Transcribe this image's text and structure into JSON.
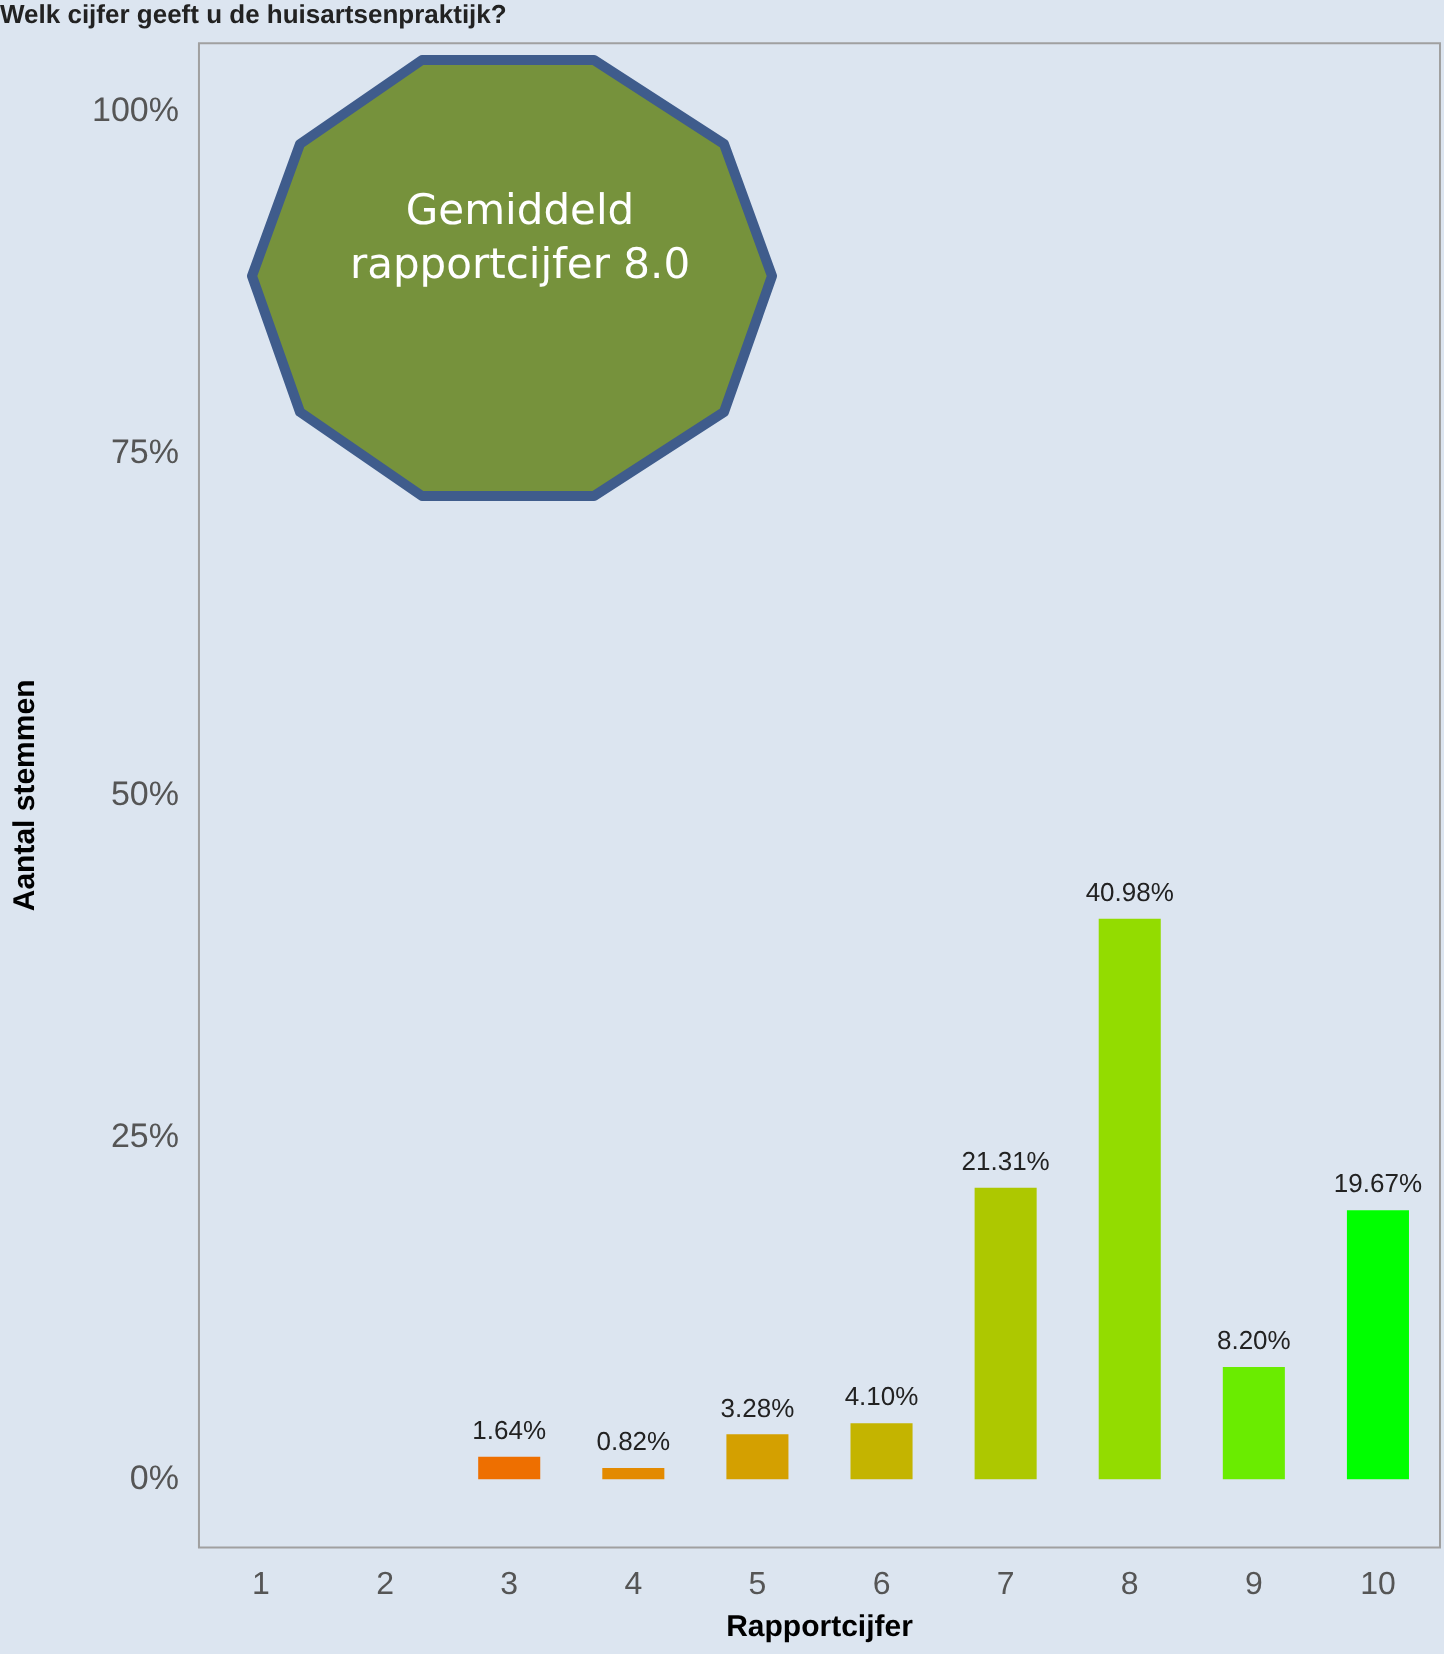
{
  "chart_data": {
    "type": "bar",
    "title": "Welk cijfer geeft u de huisartsenpraktijk?",
    "xlabel": "Rapportcijfer",
    "ylabel": "Aantal stemmen",
    "categories": [
      "1",
      "2",
      "3",
      "4",
      "5",
      "6",
      "7",
      "8",
      "9",
      "10"
    ],
    "values": [
      null,
      null,
      1.64,
      0.82,
      3.28,
      4.1,
      21.31,
      40.98,
      8.2,
      19.67
    ],
    "value_labels": [
      null,
      null,
      "1.64%",
      "0.82%",
      "3.28%",
      "4.10%",
      "21.31%",
      "40.98%",
      "8.20%",
      "19.67%"
    ],
    "colors": [
      "#ee6f00",
      "#ee6f00",
      "#ee6f00",
      "#e38a00",
      "#d4a000",
      "#c4b400",
      "#adc800",
      "#93dc00",
      "#6aec00",
      "#00ff00"
    ],
    "ylim": [
      -5,
      105
    ],
    "yticks": [
      {
        "value": 0,
        "label": "0%"
      },
      {
        "value": 25,
        "label": "25%"
      },
      {
        "value": 50,
        "label": "50%"
      },
      {
        "value": 75,
        "label": "75%"
      },
      {
        "value": 100,
        "label": "100%"
      }
    ],
    "grid": false,
    "legend": false,
    "annotations": [
      "Gemiddeld rapportcijfer 8.0"
    ]
  }
}
